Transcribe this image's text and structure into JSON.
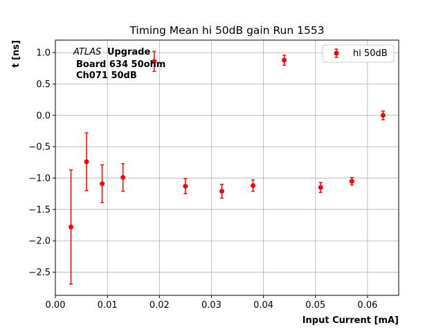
{
  "chart_data": {
    "type": "scatter",
    "title": "Timing Mean hi 50dB gain Run 1553",
    "xlabel": "Input Current [mA]",
    "ylabel": "t [ns]",
    "xlim": [
      0.0,
      0.066
    ],
    "ylim": [
      -2.87,
      1.2
    ],
    "xticks": [
      0.0,
      0.01,
      0.02,
      0.03,
      0.04,
      0.05,
      0.06
    ],
    "xtick_labels": [
      "0.00",
      "0.01",
      "0.02",
      "0.03",
      "0.04",
      "0.05",
      "0.06"
    ],
    "yticks": [
      -2.5,
      -2.0,
      -1.5,
      -1.0,
      -0.5,
      0.0,
      0.5,
      1.0
    ],
    "ytick_labels": [
      "−2.5",
      "−2.0",
      "−1.5",
      "−1.0",
      "−0.5",
      "0.0",
      "0.5",
      "1.0"
    ],
    "grid": true,
    "legend_position": "top-right",
    "annotation": {
      "atlas": "ATLAS",
      "upgrade": "Upgrade",
      "line2": "Board 634 50ohm",
      "line3": "Ch071 50dB"
    },
    "series": [
      {
        "name": "hi 50dB",
        "color": "#ff0000",
        "x": [
          0.003,
          0.006,
          0.009,
          0.013,
          0.019,
          0.025,
          0.032,
          0.038,
          0.044,
          0.051,
          0.057,
          0.063
        ],
        "y": [
          -1.78,
          -0.74,
          -1.09,
          -0.99,
          0.86,
          -1.13,
          -1.21,
          -1.12,
          0.88,
          -1.15,
          -1.05,
          0.0
        ],
        "yerr": [
          0.91,
          0.46,
          0.3,
          0.22,
          0.16,
          0.12,
          0.11,
          0.09,
          0.08,
          0.08,
          0.06,
          0.07
        ]
      }
    ]
  }
}
